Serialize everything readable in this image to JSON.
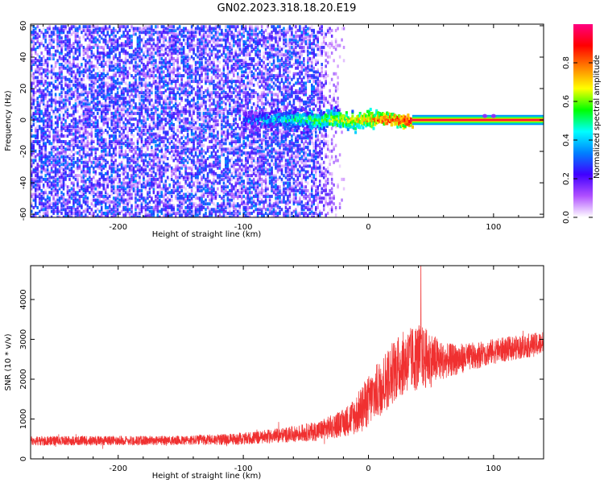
{
  "title": "GN02.2023.318.18.20.E19",
  "colors": {
    "trace": "#f03030",
    "background": "#ffffff",
    "axis": "#000000",
    "spec_low": "#6a10f0",
    "spec_band": "#28d860"
  },
  "chart_data": [
    {
      "type": "heatmap",
      "name": "spectrogram",
      "title": "GN02.2023.318.18.20.E19",
      "xlabel": "Height of straight line (km)",
      "ylabel": "Frequency (Hz)",
      "xlim": [
        -270,
        140
      ],
      "ylim": [
        -62,
        61
      ],
      "x_ticks": [
        -200,
        -100,
        0,
        100
      ],
      "x_tick_labels": [
        "-200",
        "-100",
        "0",
        "100"
      ],
      "y_ticks": [
        -60,
        -40,
        -20,
        0,
        20,
        40,
        60
      ],
      "y_tick_labels": [
        "-60",
        "-40",
        "-20",
        "0",
        "20",
        "40",
        "60"
      ],
      "colorbar": {
        "label": "Normalized spectral amplitude",
        "range": [
          0,
          1
        ],
        "ticks": [
          0.0,
          0.2,
          0.4,
          0.6,
          0.8
        ],
        "tick_labels": [
          "0.0",
          "0.2",
          "0.4",
          "0.6",
          "0.8"
        ],
        "colormap": [
          "#ffffff",
          "#b050ff",
          "#4000ff",
          "#0080ff",
          "#00ffff",
          "#00ff00",
          "#ffff00",
          "#ff8000",
          "#ff0000",
          "#ff0080"
        ]
      },
      "features": {
        "noise_x_range": [
          -270,
          -45
        ],
        "noise_intensity": 0.35,
        "noise_fade_end": -30,
        "band_freq": 0,
        "band_x_range": [
          -100,
          140
        ],
        "band_start_ramp": [
          -100,
          35
        ],
        "band_peak_amplitude": 0.95,
        "band_halfwidth_hz": 3
      }
    },
    {
      "type": "line",
      "name": "snr",
      "xlabel": "Height of straight line (km)",
      "ylabel": "SNR (10 * v/v)",
      "xlim": [
        -270,
        140
      ],
      "ylim": [
        0,
        4850
      ],
      "x_ticks": [
        -200,
        -100,
        0,
        100
      ],
      "x_tick_labels": [
        "-200",
        "-100",
        "0",
        "100"
      ],
      "y_ticks": [
        0,
        1000,
        2000,
        3000,
        4000
      ],
      "y_tick_labels": [
        "0",
        "1000",
        "2000",
        "3000",
        "4000"
      ],
      "envelope_x": [
        -270,
        -200,
        -150,
        -100,
        -60,
        -40,
        -20,
        -10,
        0,
        10,
        20,
        30,
        40,
        50,
        60,
        80,
        100,
        120,
        140
      ],
      "envelope_mean": [
        450,
        460,
        460,
        500,
        620,
        700,
        900,
        1100,
        1450,
        1800,
        2200,
        2450,
        2550,
        2500,
        2450,
        2550,
        2700,
        2800,
        2900
      ],
      "envelope_spread": [
        120,
        120,
        120,
        150,
        200,
        250,
        350,
        500,
        650,
        750,
        800,
        800,
        850,
        700,
        450,
        350,
        320,
        300,
        300
      ],
      "peak": {
        "x": 42,
        "y": 4850
      }
    }
  ]
}
